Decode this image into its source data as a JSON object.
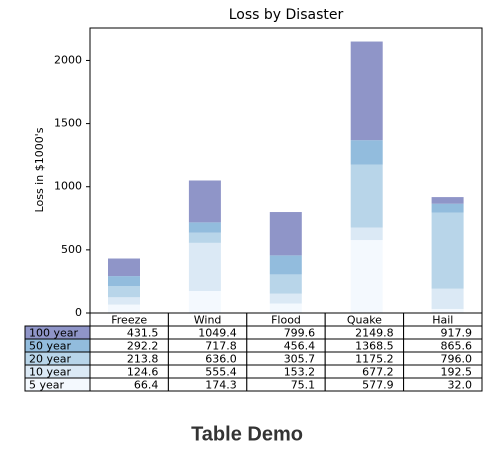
{
  "chart_data": {
    "type": "stacked_bar_table",
    "title": "Loss by Disaster",
    "ylabel": "Loss in $1000's",
    "categories": [
      "Freeze",
      "Wind",
      "Flood",
      "Quake",
      "Hail"
    ],
    "series": [
      {
        "name": "100 year",
        "color": "#8f95c8",
        "values": [
          139.3,
          331.6,
          343.2,
          781.3,
          52.3
        ]
      },
      {
        "name": "50 year",
        "color": "#92bcdd",
        "values": [
          78.4,
          81.8,
          150.7,
          193.3,
          69.6
        ]
      },
      {
        "name": "20 year",
        "color": "#b8d5e9",
        "values": [
          89.2,
          80.6,
          152.5,
          498.0,
          603.5
        ]
      },
      {
        "name": "10 year",
        "color": "#dbe9f5",
        "values": [
          58.2,
          381.1,
          78.1,
          99.3,
          160.5
        ]
      },
      {
        "name": "5 year",
        "color": "#f4f9fe",
        "values": [
          66.4,
          174.3,
          75.1,
          577.9,
          32.0
        ]
      }
    ],
    "table": {
      "cells": [
        [
          "431.5",
          "1049.4",
          "799.6",
          "2149.8",
          "917.9"
        ],
        [
          "292.2",
          "717.8",
          "456.4",
          "1368.5",
          "865.6"
        ],
        [
          "213.8",
          "636.0",
          "305.7",
          "1175.2",
          "796.0"
        ],
        [
          "124.6",
          "555.4",
          "153.2",
          "677.2",
          "192.5"
        ],
        [
          "66.4",
          "174.3",
          "75.1",
          "577.9",
          "32.0"
        ]
      ]
    },
    "ylim": [
      0,
      2257
    ],
    "yticks": [
      0,
      500,
      1000,
      1500,
      2000
    ]
  },
  "page": {
    "heading": "Table Demo"
  }
}
